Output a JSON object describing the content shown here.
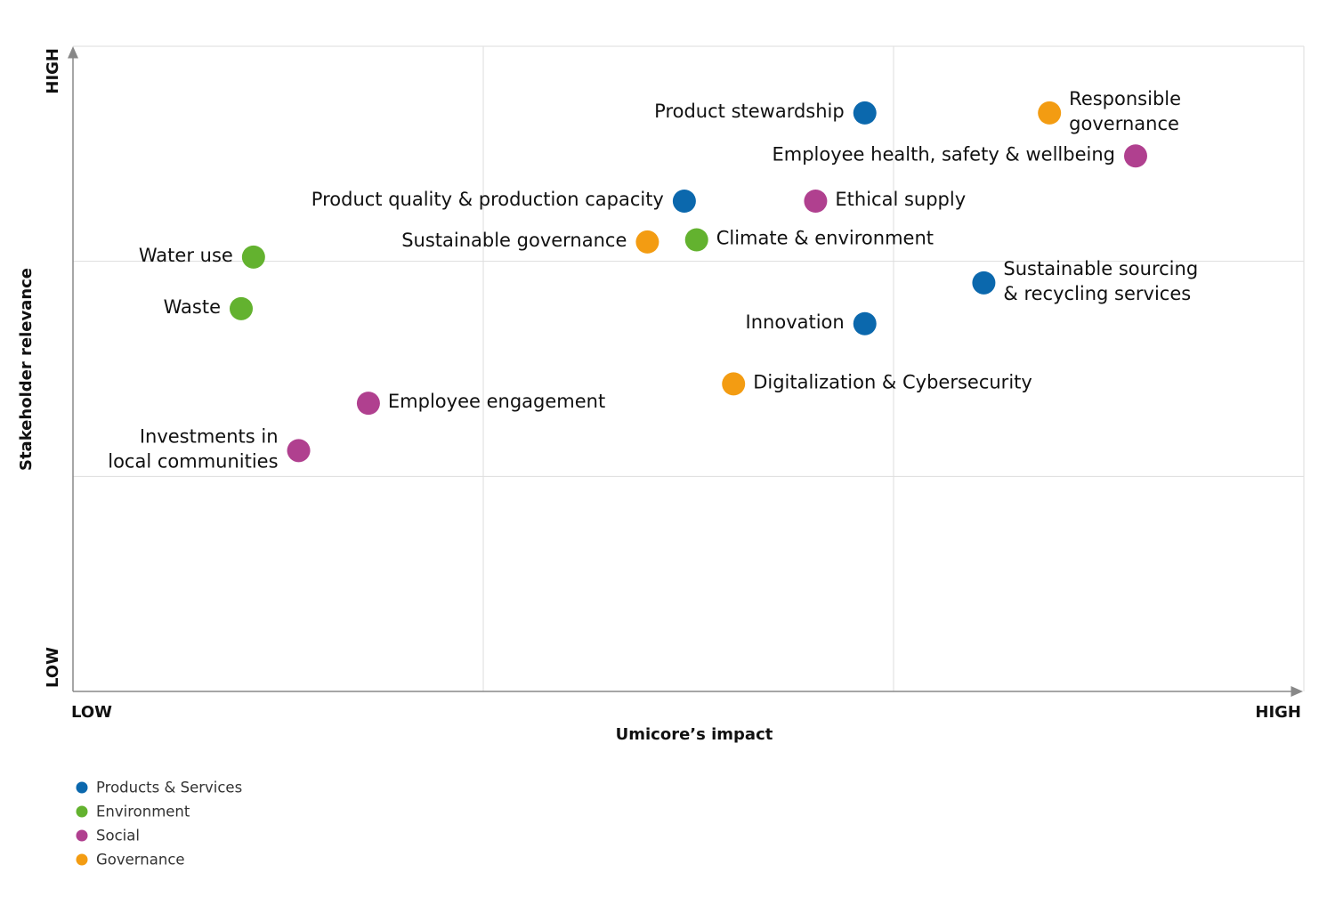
{
  "chart_data": {
    "type": "scatter",
    "x_label": "Umicore’s impact",
    "y_label": "Stakeholder relevance",
    "xlim": [
      0,
      3
    ],
    "ylim": [
      0,
      3
    ],
    "xticks": [
      {
        "value": 0,
        "label": "LOW"
      },
      {
        "value": 3,
        "label": "HIGH"
      }
    ],
    "yticks": [
      {
        "value": 0,
        "label": "LOW"
      },
      {
        "value": 3,
        "label": "HIGH"
      }
    ],
    "xgrid": [
      1,
      2
    ],
    "ygrid": [
      1,
      2
    ],
    "series": [
      {
        "name": "Products & Services",
        "color": "#0b68ad",
        "x": [
          1.93,
          1.49,
          2.22,
          1.93
        ],
        "values": [
          2.69,
          2.28,
          1.9,
          1.71
        ],
        "labels": [
          [
            "Product stewardship"
          ],
          [
            "Product quality & production capacity"
          ],
          [
            "Sustainable sourcing",
            "& recycling services"
          ],
          [
            "Innovation"
          ]
        ]
      },
      {
        "name": "Environment",
        "color": "#63b22f",
        "x": [
          0.44,
          0.41,
          1.52
        ],
        "values": [
          2.02,
          1.78,
          2.1
        ],
        "labels": [
          [
            "Water use"
          ],
          [
            "Waste"
          ],
          [
            "Climate & environment"
          ]
        ]
      },
      {
        "name": "Social",
        "color": "#b0408f",
        "x": [
          2.59,
          1.81,
          0.72,
          0.55
        ],
        "values": [
          2.49,
          2.28,
          1.34,
          1.12
        ],
        "labels": [
          [
            "Employee health, safety & wellbeing"
          ],
          [
            "Ethical supply"
          ],
          [
            "Employee engagement"
          ],
          [
            "Investments in",
            "local communities"
          ]
        ]
      },
      {
        "name": "Governance",
        "color": "#f39c12",
        "x": [
          2.38,
          1.4,
          1.61
        ],
        "values": [
          2.69,
          2.09,
          1.43
        ],
        "labels": [
          [
            "Responsible",
            "governance"
          ],
          [
            "Sustainable governance"
          ],
          [
            "Digitalization & Cybersecurity"
          ]
        ]
      }
    ]
  }
}
